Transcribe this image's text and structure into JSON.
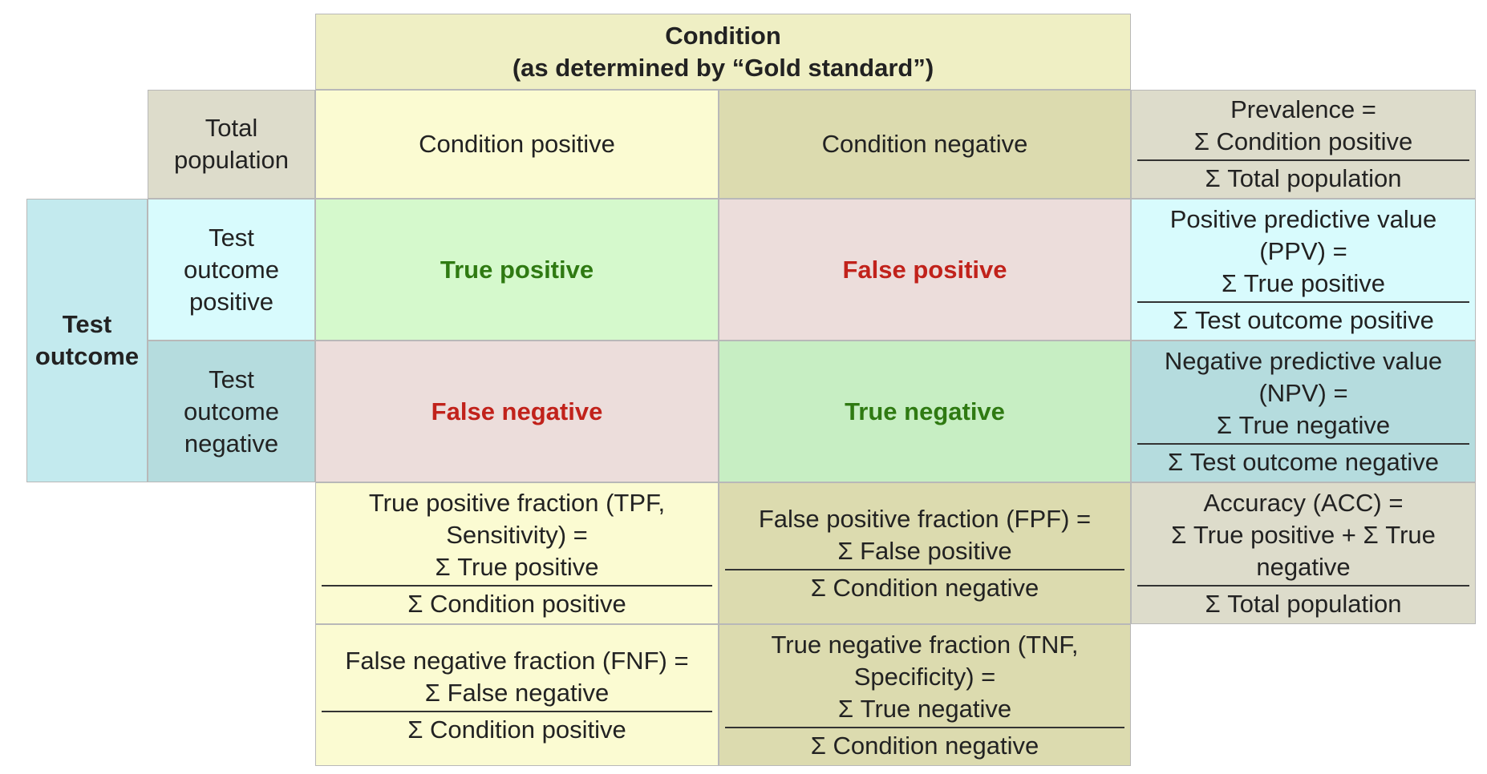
{
  "colors": {
    "header_yellow": "#efefc4",
    "label_gray": "#dddccb",
    "cond_pos_bg": "#fbfbd2",
    "cond_neg_bg": "#dcdbaf",
    "prevalence_bg": "#dddccb",
    "test_outcome_bg": "#c3eaee",
    "test_pos_bg": "#d8fbfd",
    "test_neg_bg": "#b5dcde",
    "tp_bg": "#d5f9cc",
    "fp_bg": "#ecdddb",
    "fn_bg": "#ecdddb",
    "tn_bg": "#c7eec3",
    "accuracy_bg": "#dddccb",
    "green_text": "#2f7a12",
    "red_text": "#c1221b"
  },
  "condition_header": {
    "line1": "Condition",
    "line2": "(as determined by “Gold standard”)"
  },
  "total_population": {
    "line1": "Total",
    "line2": "population"
  },
  "condition_positive": "Condition positive",
  "condition_negative": "Condition negative",
  "prevalence": {
    "label": "Prevalence =",
    "numerator": "Σ Condition positive",
    "denominator": "Σ Total population"
  },
  "test_outcome": {
    "line1": "Test",
    "line2": "outcome"
  },
  "test_outcome_positive": {
    "line1": "Test",
    "line2": "outcome",
    "line3": "positive"
  },
  "test_outcome_negative": {
    "line1": "Test",
    "line2": "outcome",
    "line3": "negative"
  },
  "true_positive": "True positive",
  "false_positive": "False positive",
  "false_negative": "False negative",
  "true_negative": "True negative",
  "ppv": {
    "line1": "Positive predictive value",
    "line2": "(PPV) =",
    "numerator": "Σ True positive",
    "denominator": "Σ Test outcome positive"
  },
  "npv": {
    "line1": "Negative predictive value",
    "line2": "(NPV) =",
    "numerator": "Σ True negative",
    "denominator": "Σ Test outcome negative"
  },
  "tpf": {
    "line1": "True positive fraction (TPF,",
    "line2": "Sensitivity) =",
    "numerator": "Σ True positive",
    "denominator": "Σ Condition positive"
  },
  "fpf": {
    "line1": "False positive fraction (FPF) =",
    "numerator": "Σ False positive",
    "denominator": "Σ Condition negative"
  },
  "accuracy": {
    "line1": "Accuracy (ACC) =",
    "line2": "Σ True positive + Σ True",
    "line3": "negative",
    "denominator": "Σ Total population"
  },
  "fnf": {
    "line1": "False negative fraction (FNF) =",
    "numerator": "Σ False negative",
    "denominator": "Σ Condition positive"
  },
  "tnf": {
    "line1": "True negative fraction (TNF,",
    "line2": "Specificity) =",
    "numerator": "Σ True negative",
    "denominator": "Σ Condition negative"
  }
}
